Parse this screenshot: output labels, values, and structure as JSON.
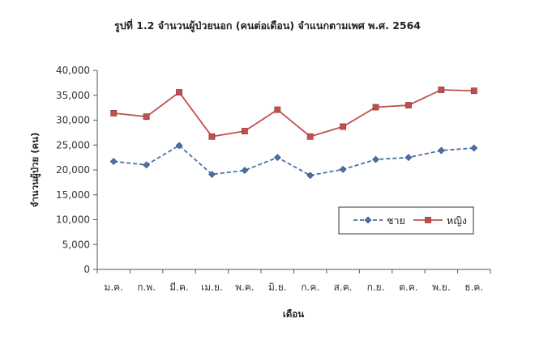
{
  "chart_data": {
    "type": "line",
    "title": "รูปที่ 1.2 จำนวนผู้ป่วยนอก (คนต่อเดือน) จำแนกตามเพศ พ.ศ. 2564",
    "xlabel": "เดือน",
    "ylabel": "จำนวนผู้ป่วย (คน)",
    "categories": [
      "ม.ค.",
      "ก.พ.",
      "มี.ค.",
      "เม.ย.",
      "พ.ค.",
      "มิ.ย.",
      "ก.ค.",
      "ส.ค.",
      "ก.ย.",
      "ต.ค.",
      "พ.ย.",
      "ธ.ค."
    ],
    "ylim": [
      0,
      40000
    ],
    "yticks": [
      0,
      5000,
      10000,
      15000,
      20000,
      25000,
      30000,
      35000,
      40000
    ],
    "ytick_labels": [
      "0",
      "5,000",
      "10,000",
      "15,000",
      "20,000",
      "25,000",
      "30,000",
      "35,000",
      "40,000"
    ],
    "grid": false,
    "legend_position": "right",
    "series": [
      {
        "name": "ชาย",
        "color": "#4a6fa5",
        "line_style": "dashed",
        "marker": "diamond",
        "values": [
          21700,
          21000,
          24900,
          19100,
          19900,
          22500,
          18900,
          20100,
          22100,
          22500,
          23900,
          24400
        ]
      },
      {
        "name": "หญิง",
        "color": "#c0504d",
        "line_style": "solid",
        "marker": "square",
        "values": [
          31400,
          30700,
          35600,
          26700,
          27800,
          32100,
          26700,
          28700,
          32600,
          33000,
          36100,
          35900
        ]
      }
    ]
  }
}
